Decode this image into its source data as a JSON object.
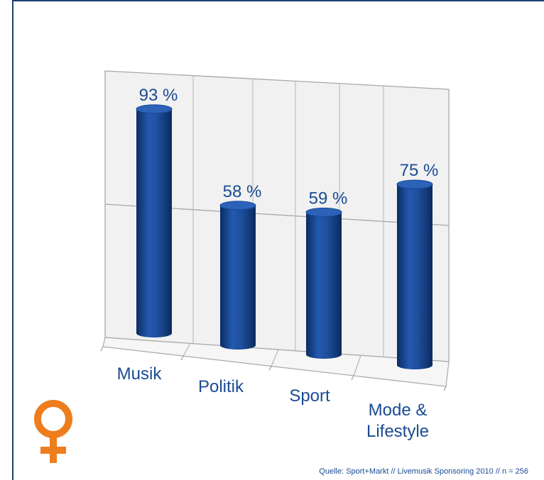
{
  "chart_data": {
    "type": "bar",
    "style": "3d-cylinder",
    "categories": [
      "Musik",
      "Politik",
      "Sport",
      "Mode & Lifestyle"
    ],
    "category_lines": [
      [
        "Musik"
      ],
      [
        "Politik"
      ],
      [
        "Sport"
      ],
      [
        "Mode &",
        "Lifestyle"
      ]
    ],
    "values": [
      93,
      58,
      59,
      75
    ],
    "value_labels": [
      "93 %",
      "58 %",
      "59 %",
      "75 %"
    ],
    "ylim": [
      0,
      100
    ],
    "grid": true,
    "colors": {
      "bar": "#1d4f9c",
      "bar_dark": "#0d2f66",
      "label": "#1a4b93"
    }
  },
  "footer": {
    "source": "Quelle: Sport+Markt // Livemusik Sponsoring 2010 // n = 256"
  },
  "icons": {
    "gender": "female-symbol-icon",
    "gender_color": "#ee7d1e"
  }
}
